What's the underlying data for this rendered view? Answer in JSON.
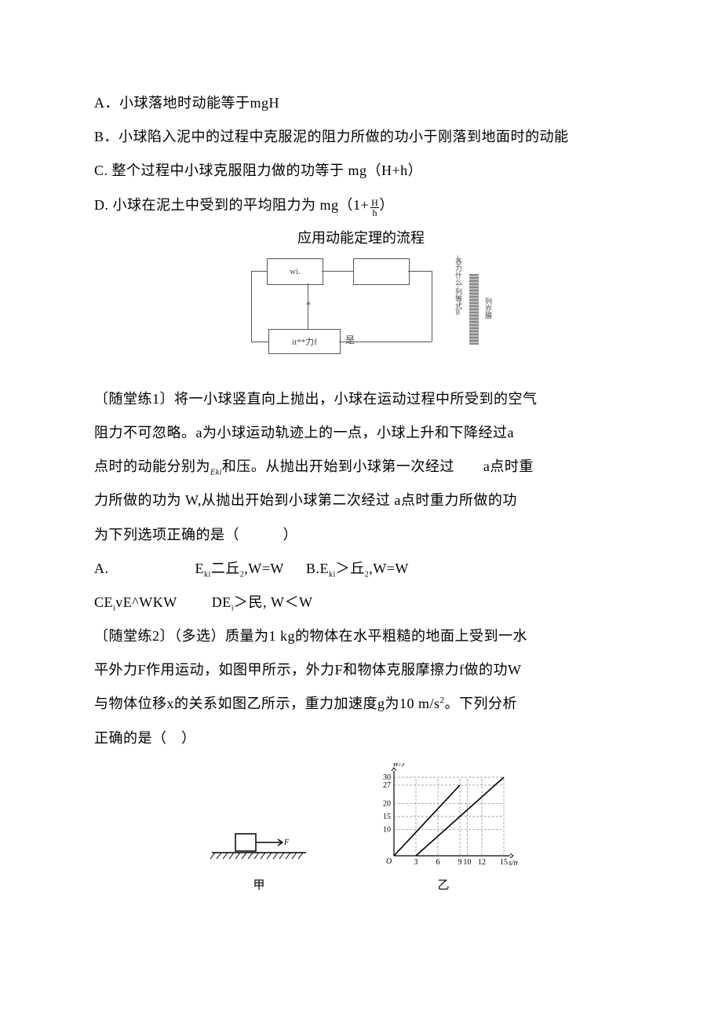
{
  "optA": "A．小球落地时动能等于mgH",
  "optB": "B．小球陷入泥中的过程中克服泥的阻力所做的功小于刚落到地面时的动能",
  "optC": "C. 整个过程中小球克服阻力做的功等于 mg（H+h）",
  "optD_prefix": "D. 小球在泥土中受到的平均阻力为 mg（1+",
  "optD_frac_num": "H",
  "optD_frac_den": "h",
  "optD_suffix": "）",
  "diagram_title": "应用动能定理的流程",
  "diag": {
    "box1": "wi.",
    "box2": "",
    "box3": "*",
    "box4": "it**力f",
    "vtext1": "-各力什么-列等式m",
    "vtext2": "列亦腺"
  },
  "p1": {
    "l1": "〔随堂练1〕将一小球竖直向上抛出，小球在运动过程中所受到的空气",
    "l2_a": "阻力不可忽略。a为小球运动轨迹上的一点，小球上升和下降经过a",
    "l3_a": "点时的动能分别为",
    "l3_eki": "Eki",
    "l3_b": "和压。从抛出开始到小球第一次经过  a点时重",
    "l4": "力所做的功为 W,从抛出开始到小球第二次经过 a点时重力所做的功",
    "l5": "为下列选项正确的是（   ）",
    "optA_lead": "A.",
    "optA": "Eki二丘2,W=W",
    "optB_lead": "B.",
    "optB": "Eki＞丘2,W=W",
    "optC": "CEivE^WKW",
    "optD": "DEi＞民, W＜W"
  },
  "p2": {
    "l1": "〔随堂练2〕（多选）质量为1 kg的物体在水平粗糙的地面上受到一水",
    "l2": "平外力F作用运动，如图甲所示，外力F和物体克服摩擦力f做的功W",
    "l3_a": "与物体位移x的关系如图乙所示，重力加速度g为10 m/s",
    "l3_sup": "2",
    "l3_b": "。下列分析",
    "l4": "正确的是（ ）"
  },
  "fig": {
    "cap_left": "甲",
    "cap_right": "乙",
    "force_label": "F",
    "x_label": "s/m",
    "y_label": "W/J",
    "y_ticks": [
      "10",
      "15",
      "20",
      "27",
      "30"
    ],
    "x_ticks": [
      "3",
      "6",
      "9",
      "10",
      "12",
      "15"
    ],
    "axis_color": "#000000",
    "grid_color": "#888888",
    "line_color": "#000000",
    "bg": "#ffffff",
    "xlim": [
      0,
      15
    ],
    "ylim": [
      0,
      30
    ],
    "series": {
      "W_F": {
        "points": [
          [
            0,
            0
          ],
          [
            9,
            27
          ]
        ],
        "dash": false
      },
      "W_f": {
        "points": [
          [
            3,
            0
          ],
          [
            15,
            30
          ]
        ],
        "dash": false
      }
    },
    "guides_x": [
      3,
      6,
      9,
      10,
      12,
      15
    ],
    "guides_y": [
      10,
      15,
      20,
      27,
      30
    ]
  }
}
